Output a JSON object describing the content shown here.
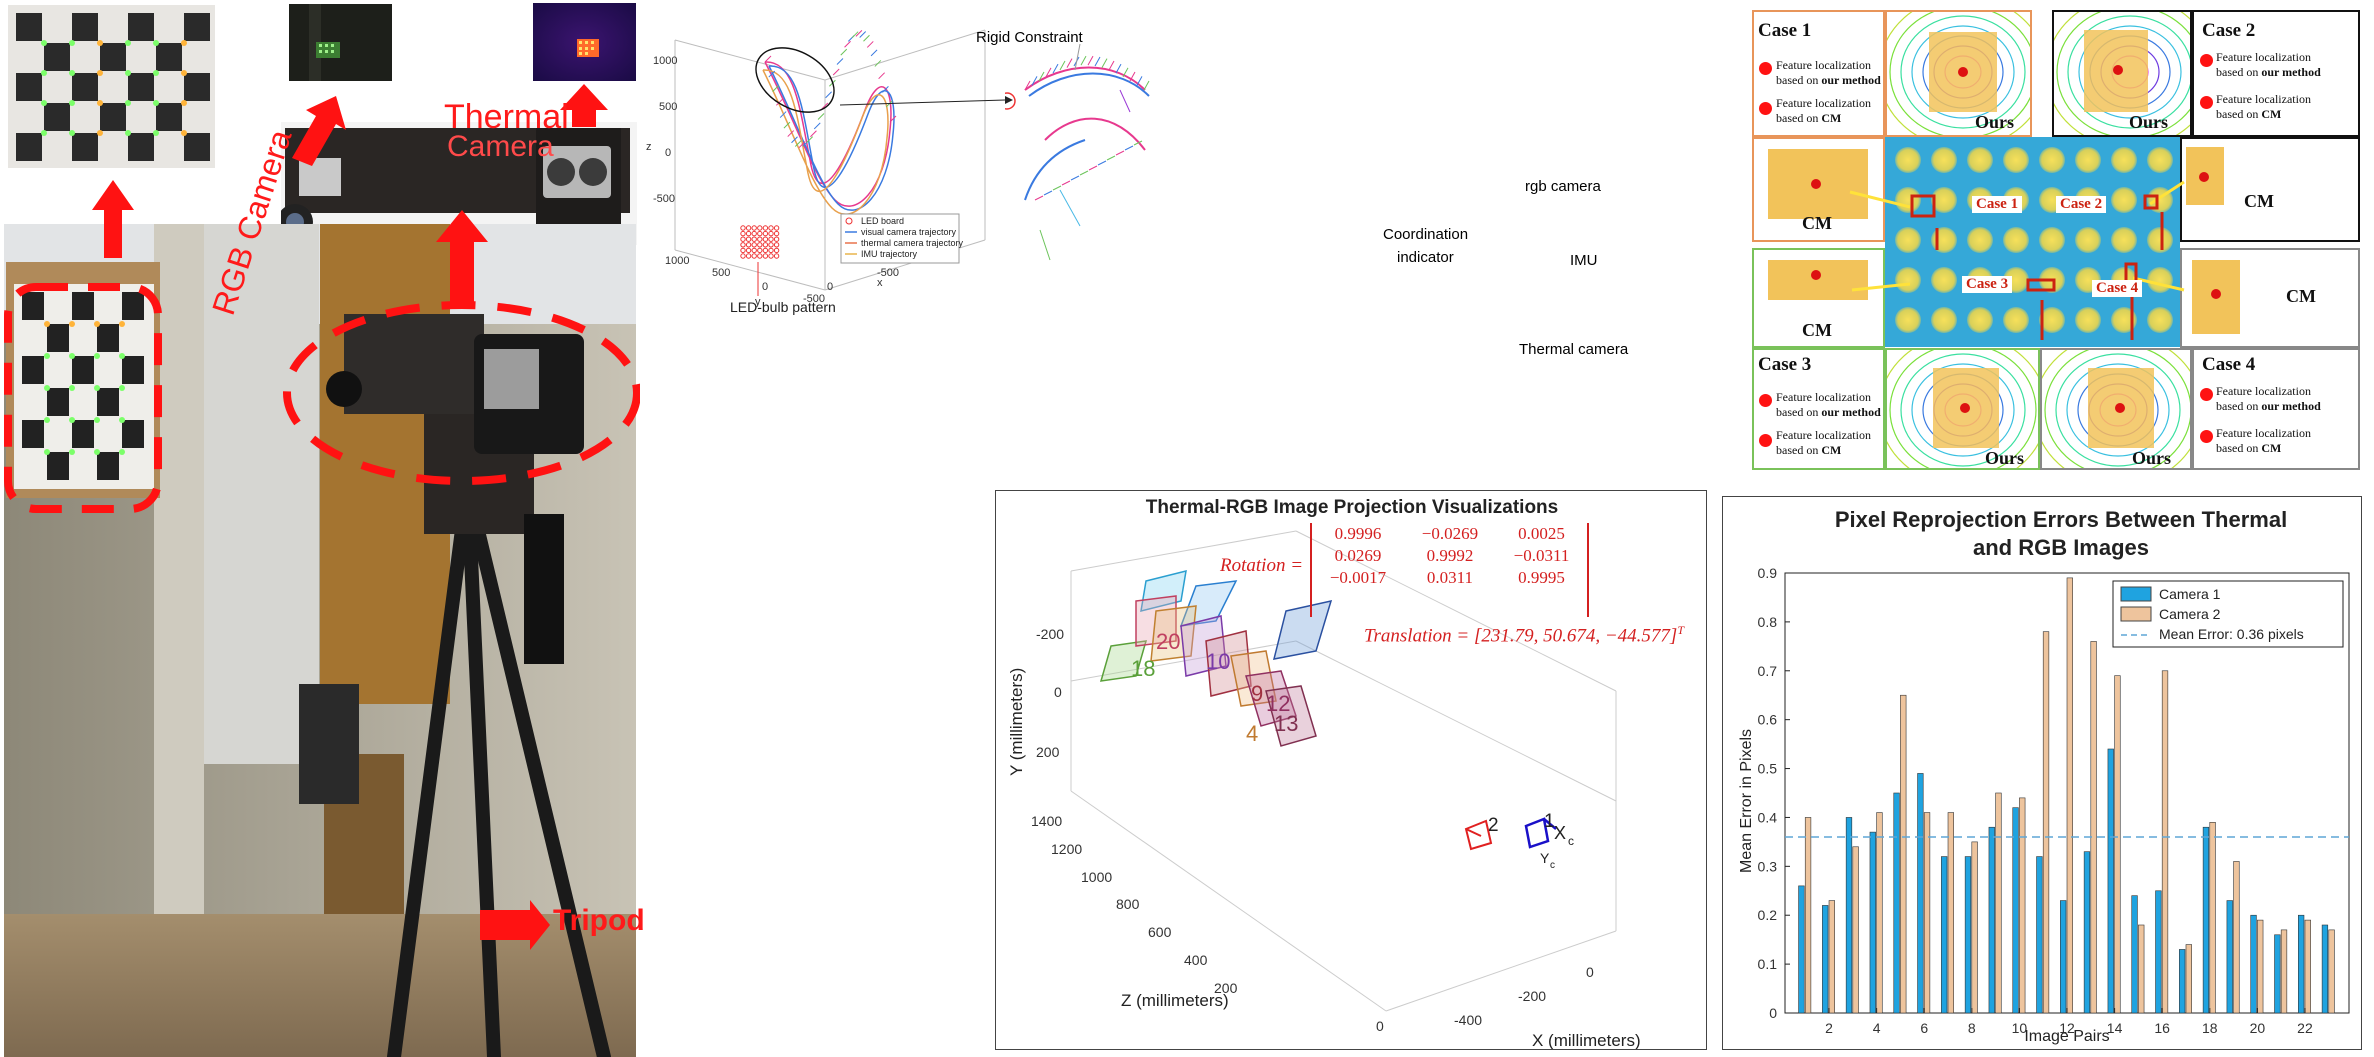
{
  "photo": {
    "thermal_label": "Thermal",
    "camera_label": "Camera",
    "rgb_label": "RGB Camera",
    "tripod_label": "Tripod"
  },
  "trajectory": {
    "axis_z": "z",
    "axis_y": "y",
    "axis_x": "x",
    "z_ticks": [
      "1000",
      "500",
      "0",
      "-500"
    ],
    "y_ticks": [
      "1000",
      "500",
      "0",
      "-500"
    ],
    "x_ticks": [
      "0",
      "-500"
    ],
    "annotations": {
      "rigid": "Rigid Constraint",
      "rgb": "rgb camera",
      "coord_1": "Coordination",
      "coord_2": "indicator",
      "imu": "IMU",
      "thermal": "Thermal camera",
      "led": "LED-bulb pattern"
    },
    "legend": [
      "LED board",
      "visual camera trajectory",
      "thermal camera trajectory",
      "IMU trajectory"
    ]
  },
  "cases": {
    "case1": "Case 1",
    "case2": "Case 2",
    "case3": "Case 3",
    "case4": "Case 4",
    "leg_ours_1": "Feature localization",
    "leg_ours_2": "based on",
    "leg_ours_3": "our method",
    "leg_cm_1": "Feature localization",
    "leg_cm_2": "based on",
    "leg_cm_3": "CM",
    "ours": "Ours",
    "cm": "CM"
  },
  "projection": {
    "title": "Thermal-RGB Image Projection Visualizations",
    "rotation_label": "Rotation =",
    "rotation": [
      [
        "0.9996",
        "−0.0269",
        "0.0025"
      ],
      [
        "0.0269",
        "0.9992",
        "−0.0311"
      ],
      [
        "−0.0017",
        "0.0311",
        "0.9995"
      ]
    ],
    "translation": "Translation = [231.79, 50.674, −44.577]",
    "translation_sup": "T",
    "ylabel": "Y (millimeters)",
    "zlabel": "Z (millimeters)",
    "xlabel": "X (millimeters)",
    "y_ticks": [
      "-200",
      "0",
      "200"
    ],
    "z_ticks": [
      "1400",
      "1200",
      "1000",
      "800",
      "600",
      "400",
      "200",
      "0"
    ],
    "x_ticks": [
      "0",
      "-200",
      "-400"
    ],
    "board_labels": [
      "20",
      "18",
      "10",
      "12",
      "13",
      "4",
      "9",
      "2",
      "1"
    ],
    "cam_x": "X",
    "cam_y": "Y",
    "cam_sub": "c"
  },
  "chart_data": {
    "type": "bar",
    "title": "Pixel Reprojection Errors Between Thermal and RGB Images",
    "title_line1": "Pixel Reprojection Errors Between Thermal",
    "title_line2": "and RGB Images",
    "xlabel": "Image Pairs",
    "ylabel": "Mean Error in Pixels",
    "ylim": [
      0,
      0.9
    ],
    "yticks": [
      "0",
      "0.1",
      "0.2",
      "0.3",
      "0.4",
      "0.5",
      "0.6",
      "0.7",
      "0.8",
      "0.9"
    ],
    "xticks": [
      "2",
      "4",
      "6",
      "8",
      "10",
      "12",
      "14",
      "16",
      "18",
      "20",
      "22"
    ],
    "categories": [
      "1",
      "2",
      "3",
      "4",
      "5",
      "6",
      "7",
      "8",
      "9",
      "10",
      "11",
      "12",
      "13",
      "14",
      "15",
      "16",
      "17",
      "18",
      "19",
      "20",
      "21",
      "22",
      "23"
    ],
    "series": [
      {
        "name": "Camera 1",
        "color": "#1fa3e0",
        "values": [
          0.26,
          0.22,
          0.4,
          0.37,
          0.45,
          0.49,
          0.32,
          0.32,
          0.38,
          0.42,
          0.32,
          0.23,
          0.33,
          0.54,
          0.24,
          0.25,
          0.13,
          0.38,
          0.23,
          0.2,
          0.16,
          0.2,
          0.18
        ]
      },
      {
        "name": "Camera 2",
        "color": "#eec49d",
        "values": [
          0.4,
          0.23,
          0.34,
          0.41,
          0.65,
          0.41,
          0.41,
          0.35,
          0.45,
          0.44,
          0.78,
          0.89,
          0.76,
          0.69,
          0.18,
          0.7,
          0.14,
          0.39,
          0.31,
          0.19,
          0.17,
          0.19,
          0.17
        ]
      }
    ],
    "mean_line": {
      "value": 0.36,
      "label": "Mean Error: 0.36 pixels"
    },
    "legend_position": "top-right",
    "grid": false
  }
}
